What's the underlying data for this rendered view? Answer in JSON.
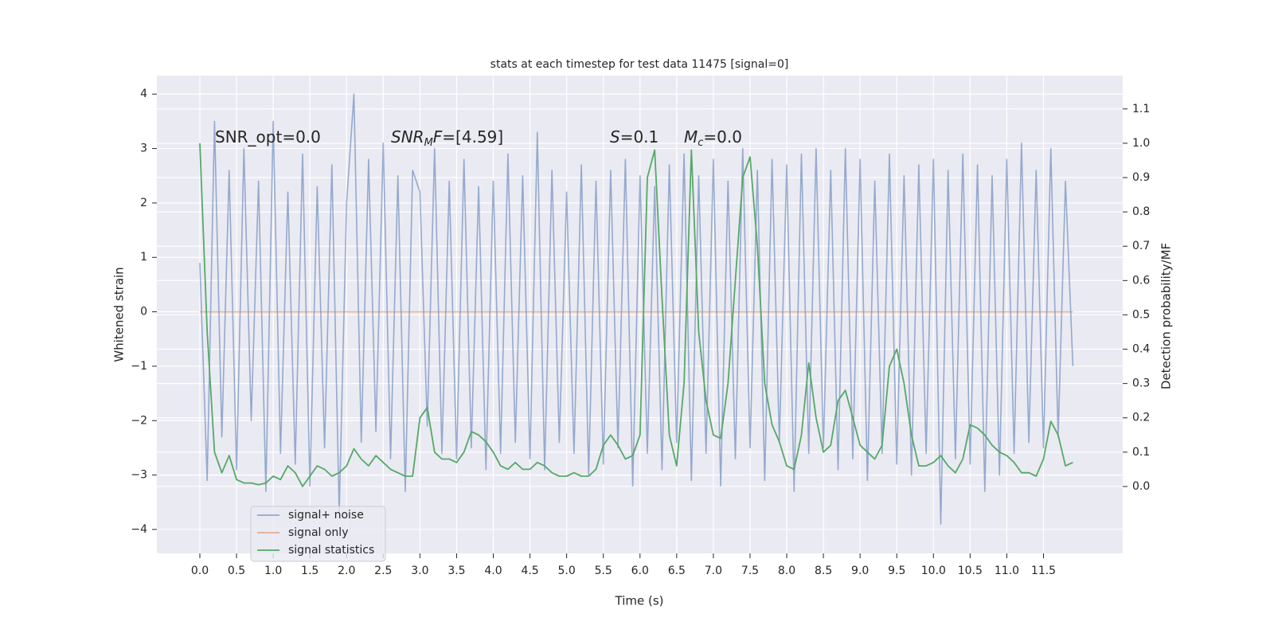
{
  "chart_data": {
    "type": "line",
    "title": "stats at each timestep for test data 11475 [signal=0]",
    "xlabel": "Time (s)",
    "ylabel": "Whitened strain",
    "y2label": "Detection probability/MF",
    "xlim": [
      -0.586,
      12.58
    ],
    "ylim": [
      -4.44,
      4.34
    ],
    "y2lim": [
      -0.195,
      1.197
    ],
    "grid": true,
    "legend": "lower left",
    "xticks": [
      {
        "value": 0,
        "label": "0.0"
      },
      {
        "value": 0.5,
        "label": "0.5"
      },
      {
        "value": 1,
        "label": "1.0"
      },
      {
        "value": 1.5,
        "label": "1.5"
      },
      {
        "value": 2,
        "label": "2.0"
      },
      {
        "value": 2.5,
        "label": "2.5"
      },
      {
        "value": 3,
        "label": "3.0"
      },
      {
        "value": 3.5,
        "label": "3.5"
      },
      {
        "value": 4,
        "label": "4.0"
      },
      {
        "value": 4.5,
        "label": "4.5"
      },
      {
        "value": 5,
        "label": "5.0"
      },
      {
        "value": 5.5,
        "label": "5.5"
      },
      {
        "value": 6,
        "label": "6.0"
      },
      {
        "value": 6.5,
        "label": "6.5"
      },
      {
        "value": 7,
        "label": "7.0"
      },
      {
        "value": 7.5,
        "label": "7.5"
      },
      {
        "value": 8,
        "label": "8.0"
      },
      {
        "value": 8.5,
        "label": "8.5"
      },
      {
        "value": 9,
        "label": "9.0"
      },
      {
        "value": 9.5,
        "label": "9.5"
      },
      {
        "value": 10,
        "label": "10.0"
      },
      {
        "value": 10.5,
        "label": "10.5"
      },
      {
        "value": 11,
        "label": "11.0"
      },
      {
        "value": 11.5,
        "label": "11.5"
      }
    ],
    "yticks": [
      {
        "value": -4,
        "label": "−4"
      },
      {
        "value": -3,
        "label": "−3"
      },
      {
        "value": -2,
        "label": "−2"
      },
      {
        "value": -1,
        "label": "−1"
      },
      0,
      1,
      2,
      3,
      4
    ],
    "y2ticks": [
      {
        "value": 0,
        "label": "0.0"
      },
      {
        "value": 0.1,
        "label": "0.1"
      },
      {
        "value": 0.2,
        "label": "0.2"
      },
      {
        "value": 0.3,
        "label": "0.3"
      },
      {
        "value": 0.4,
        "label": "0.4"
      },
      {
        "value": 0.5,
        "label": "0.5"
      },
      {
        "value": 0.6,
        "label": "0.6"
      },
      {
        "value": 0.7,
        "label": "0.7"
      },
      {
        "value": 0.8,
        "label": "0.8"
      },
      {
        "value": 0.9,
        "label": "0.9"
      },
      {
        "value": 1.0,
        "label": "1.0"
      },
      {
        "value": 1.1,
        "label": "1.1"
      }
    ],
    "annotations": [
      [
        {
          "text": "SNR_opt=0.0"
        }
      ],
      [
        {
          "text": "SNR",
          "italic": true
        },
        {
          "text": "M",
          "italic": true,
          "sub": true
        },
        {
          "text": "F",
          "italic": true
        },
        {
          "text": "=[4.59]"
        }
      ],
      [
        {
          "text": "S",
          "italic": true
        },
        {
          "text": "=0.1"
        }
      ],
      [
        {
          "text": "M",
          "italic": true
        },
        {
          "text": "c",
          "italic": true,
          "sub": true
        },
        {
          "text": "=0.0"
        }
      ]
    ],
    "x": [
      0,
      0.1,
      0.2,
      0.3,
      0.4,
      0.5,
      0.6,
      0.7,
      0.8,
      0.9,
      1,
      1.1,
      1.2,
      1.3,
      1.4,
      1.5,
      1.6,
      1.7,
      1.8,
      1.9,
      2,
      2.1,
      2.2,
      2.3,
      2.4,
      2.5,
      2.6,
      2.7,
      2.8,
      2.9,
      3,
      3.1,
      3.2,
      3.3,
      3.4,
      3.5,
      3.6,
      3.7,
      3.8,
      3.9,
      4,
      4.1,
      4.2,
      4.3,
      4.4,
      4.5,
      4.6,
      4.7,
      4.8,
      4.9,
      5,
      5.1,
      5.2,
      5.3,
      5.4,
      5.5,
      5.6,
      5.7,
      5.8,
      5.9,
      6,
      6.1,
      6.2,
      6.3,
      6.4,
      6.5,
      6.6,
      6.7,
      6.8,
      6.9,
      7,
      7.1,
      7.2,
      7.3,
      7.4,
      7.5,
      7.6,
      7.7,
      7.8,
      7.9,
      8,
      8.1,
      8.2,
      8.3,
      8.4,
      8.5,
      8.6,
      8.7,
      8.8,
      8.9,
      9,
      9.1,
      9.2,
      9.3,
      9.4,
      9.5,
      9.6,
      9.7,
      9.8,
      9.9,
      10,
      10.1,
      10.2,
      10.3,
      10.4,
      10.5,
      10.6,
      10.7,
      10.8,
      10.9,
      11,
      11.1,
      11.2,
      11.3,
      11.4,
      11.5,
      11.6,
      11.7,
      11.8,
      11.9
    ],
    "series": [
      {
        "name": "signal+ noise",
        "color": "#4c72b0",
        "values": [
          0.9,
          -3.1,
          3.5,
          -2.3,
          2.6,
          -2.9,
          3.0,
          -2.0,
          2.4,
          -3.3,
          3.5,
          -2.6,
          2.2,
          -2.8,
          2.9,
          -3.2,
          2.3,
          -2.5,
          2.7,
          -3.7,
          2.0,
          4.0,
          -2.4,
          2.8,
          -2.2,
          3.1,
          -2.7,
          2.5,
          -3.3,
          2.6,
          2.2,
          -2.1,
          3.0,
          -2.6,
          2.4,
          -2.7,
          2.8,
          -2.5,
          2.3,
          -2.9,
          2.4,
          -2.6,
          2.9,
          -2.4,
          2.5,
          -2.7,
          3.3,
          -2.9,
          2.6,
          -2.4,
          2.2,
          -2.6,
          2.7,
          -3.0,
          2.4,
          -2.8,
          2.6,
          -2.5,
          2.8,
          -3.2,
          2.5,
          -2.6,
          2.3,
          -2.9,
          2.7,
          -2.4,
          2.9,
          -3.1,
          2.5,
          -2.6,
          2.8,
          -3.2,
          2.4,
          -2.7,
          3.0,
          -2.5,
          2.6,
          -3.1,
          2.8,
          -2.4,
          2.7,
          -3.3,
          2.9,
          -2.6,
          3.0,
          -2.5,
          2.6,
          -2.9,
          3.0,
          -2.7,
          2.8,
          -3.1,
          2.4,
          -2.6,
          2.9,
          -2.8,
          2.5,
          -3.0,
          2.7,
          -2.6,
          2.8,
          -3.9,
          2.6,
          -2.7,
          2.9,
          -2.8,
          2.7,
          -3.3,
          2.5,
          -3.0,
          2.8,
          -2.6,
          3.1,
          -2.4,
          2.6,
          -2.5,
          3.0,
          -2.3,
          2.4,
          -1.0
        ]
      },
      {
        "name": "signal only",
        "color": "#dd8452",
        "x": [
          0,
          11.9
        ],
        "values": [
          0,
          0
        ]
      },
      {
        "name": "signal statistics",
        "color": "#55a868",
        "axis": "y2",
        "values": [
          1.0,
          0.45,
          0.1,
          0.04,
          0.09,
          0.02,
          0.01,
          0.01,
          0.005,
          0.01,
          0.03,
          0.02,
          0.06,
          0.04,
          0.0,
          0.03,
          0.06,
          0.05,
          0.03,
          0.04,
          0.06,
          0.11,
          0.08,
          0.06,
          0.09,
          0.07,
          0.05,
          0.04,
          0.03,
          0.03,
          0.2,
          0.23,
          0.1,
          0.08,
          0.08,
          0.07,
          0.1,
          0.16,
          0.15,
          0.13,
          0.1,
          0.06,
          0.05,
          0.07,
          0.05,
          0.05,
          0.07,
          0.06,
          0.04,
          0.03,
          0.03,
          0.04,
          0.03,
          0.03,
          0.05,
          0.12,
          0.15,
          0.12,
          0.08,
          0.09,
          0.15,
          0.9,
          0.98,
          0.55,
          0.15,
          0.06,
          0.3,
          0.98,
          0.45,
          0.25,
          0.15,
          0.14,
          0.3,
          0.6,
          0.9,
          0.96,
          0.7,
          0.3,
          0.18,
          0.13,
          0.06,
          0.05,
          0.15,
          0.36,
          0.2,
          0.1,
          0.12,
          0.25,
          0.28,
          0.2,
          0.12,
          0.1,
          0.08,
          0.12,
          0.35,
          0.4,
          0.3,
          0.15,
          0.06,
          0.06,
          0.07,
          0.09,
          0.06,
          0.04,
          0.08,
          0.18,
          0.17,
          0.15,
          0.12,
          0.1,
          0.09,
          0.07,
          0.04,
          0.04,
          0.03,
          0.08,
          0.19,
          0.15,
          0.06,
          0.07
        ]
      }
    ]
  }
}
